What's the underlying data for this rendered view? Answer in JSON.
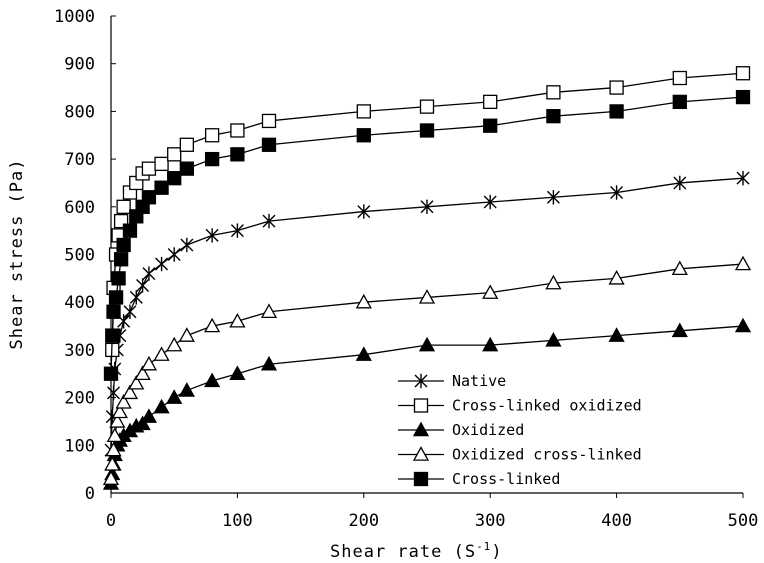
{
  "chart_data": {
    "type": "line",
    "xlabel": "Shear rate (S",
    "xlabel_sup": "-1",
    "xlabel_end": ")",
    "ylabel": "Shear stress (Pa)",
    "xlim": [
      0,
      500
    ],
    "ylim": [
      0,
      1000
    ],
    "x_ticks": [
      "0",
      "100",
      "200",
      "300",
      "400",
      "500"
    ],
    "y_ticks": [
      "0",
      "100",
      "200",
      "300",
      "400",
      "500",
      "600",
      "700",
      "800",
      "900",
      "1000"
    ],
    "grid": false,
    "legend_position": "bottom-right",
    "series": [
      {
        "name": "Native",
        "marker": "asterisk",
        "x": [
          0,
          1,
          2,
          3,
          5,
          7,
          10,
          15,
          20,
          25,
          30,
          40,
          50,
          60,
          80,
          100,
          125,
          200,
          250,
          300,
          350,
          400,
          450,
          500
        ],
        "y": [
          90,
          160,
          210,
          260,
          300,
          330,
          360,
          380,
          410,
          435,
          460,
          480,
          500,
          520,
          540,
          550,
          570,
          590,
          600,
          610,
          620,
          630,
          650,
          660
        ]
      },
      {
        "name": "Cross-linked oxidized",
        "marker": "open-square",
        "x": [
          1,
          2,
          4,
          6,
          8,
          10,
          15,
          20,
          25,
          30,
          40,
          50,
          60,
          80,
          100,
          125,
          200,
          250,
          300,
          350,
          400,
          450,
          500
        ],
        "y": [
          300,
          430,
          500,
          540,
          570,
          600,
          630,
          650,
          670,
          680,
          690,
          710,
          730,
          750,
          760,
          780,
          800,
          810,
          820,
          840,
          850,
          870,
          880
        ]
      },
      {
        "name": "Oxidized",
        "marker": "filled-triangle",
        "x": [
          0,
          1,
          2,
          3,
          5,
          7,
          10,
          15,
          20,
          25,
          30,
          40,
          50,
          60,
          80,
          100,
          125,
          200,
          250,
          300,
          350,
          400,
          450,
          500
        ],
        "y": [
          20,
          40,
          60,
          80,
          100,
          110,
          120,
          130,
          140,
          145,
          160,
          180,
          200,
          215,
          235,
          250,
          270,
          290,
          310,
          310,
          320,
          330,
          340,
          350
        ]
      },
      {
        "name": "Oxidized cross-linked",
        "marker": "open-triangle",
        "x": [
          0,
          1,
          2,
          3,
          5,
          7,
          10,
          15,
          20,
          25,
          30,
          40,
          50,
          60,
          80,
          100,
          125,
          200,
          250,
          300,
          350,
          400,
          450,
          500
        ],
        "y": [
          30,
          60,
          90,
          120,
          150,
          170,
          190,
          210,
          230,
          250,
          270,
          290,
          310,
          330,
          350,
          360,
          380,
          400,
          410,
          420,
          440,
          450,
          470,
          480
        ]
      },
      {
        "name": "Cross-linked",
        "marker": "filled-square",
        "x": [
          0,
          1,
          2,
          4,
          6,
          8,
          10,
          15,
          20,
          25,
          30,
          40,
          50,
          60,
          80,
          100,
          125,
          200,
          250,
          300,
          350,
          400,
          450,
          500
        ],
        "y": [
          250,
          330,
          380,
          410,
          450,
          490,
          520,
          550,
          580,
          600,
          620,
          640,
          660,
          680,
          700,
          710,
          730,
          750,
          760,
          770,
          790,
          800,
          820,
          830
        ]
      }
    ]
  }
}
